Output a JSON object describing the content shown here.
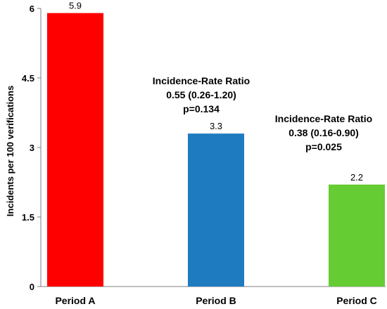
{
  "chart_data": {
    "type": "bar",
    "categories": [
      "Period A",
      "Period B",
      "Period C"
    ],
    "values": [
      5.9,
      3.3,
      2.2
    ],
    "data_labels": [
      "5.9",
      "3.3",
      "2.2"
    ],
    "bar_colors": [
      "#ff0000",
      "#1f7bbf",
      "#66cc33"
    ],
    "title": "",
    "xlabel": "",
    "ylabel": "Incidents per 100 verifications",
    "ylim": [
      0,
      6
    ],
    "yticks": [
      "0",
      "1.5",
      "3",
      "4.5",
      "6"
    ],
    "grid": false,
    "legend": "none",
    "annotations": [
      {
        "near_category": "Period B",
        "lines": [
          "Incidence-Rate Ratio",
          "0.55 (0.26-1.20)",
          "p=0.134"
        ]
      },
      {
        "near_category": "Period C",
        "lines": [
          "Incidence-Rate Ratio",
          "0.38 (0.16-0.90)",
          "p=0.025"
        ]
      }
    ]
  }
}
